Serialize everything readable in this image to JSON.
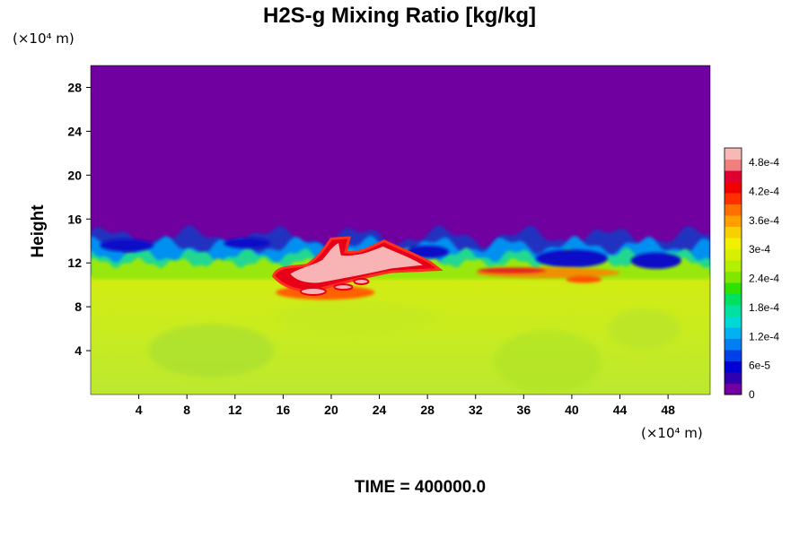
{
  "chart_data": {
    "type": "heatmap",
    "title": "H2S-g Mixing Ratio [kg/kg]",
    "ylabel": "Height",
    "xlabel": "",
    "x_unit": "(×10⁴ m)",
    "y_unit": "(×10⁴ m)",
    "x_ticks": [
      "4",
      "8",
      "12",
      "16",
      "20",
      "24",
      "28",
      "32",
      "36",
      "40",
      "44",
      "48"
    ],
    "y_ticks": [
      "4",
      "8",
      "12",
      "16",
      "20",
      "24",
      "28"
    ],
    "xlim": [
      0,
      51.5
    ],
    "ylim": [
      0,
      30
    ],
    "colorbar": {
      "min": 0,
      "max": 0.00051,
      "ticks": [
        "0",
        "6e-5",
        "1.2e-4",
        "1.8e-4",
        "2.4e-4",
        "3e-4",
        "3.6e-4",
        "4.2e-4",
        "4.8e-4"
      ],
      "colors": [
        "#7000a0",
        "#3000b0",
        "#0000d0",
        "#0040e8",
        "#0080f0",
        "#00b0f0",
        "#00d8d8",
        "#00e0a0",
        "#00e060",
        "#30e000",
        "#80e800",
        "#b0f000",
        "#d8f000",
        "#f0f000",
        "#f8d000",
        "#ffa000",
        "#ff7000",
        "#ff3000",
        "#f00000",
        "#e00030",
        "#f08080",
        "#f8b8b8"
      ]
    },
    "fields": {
      "upper_region_value": 0,
      "upper_region_range_y": [
        15,
        30
      ],
      "boundary_height_approx": 13,
      "lower_region_value_approx": 0.00034,
      "lower_region_range_y": [
        0,
        11
      ],
      "peak_region": {
        "x_range": [
          16,
          29
        ],
        "y_range": [
          9,
          14
        ],
        "value_approx": 0.0005
      },
      "secondary_peak_region": {
        "x_range": [
          32,
          44
        ],
        "y_range": [
          10,
          12
        ],
        "value_approx": 0.00044
      }
    }
  },
  "footer": {
    "time_label": "TIME = 400000.0"
  }
}
